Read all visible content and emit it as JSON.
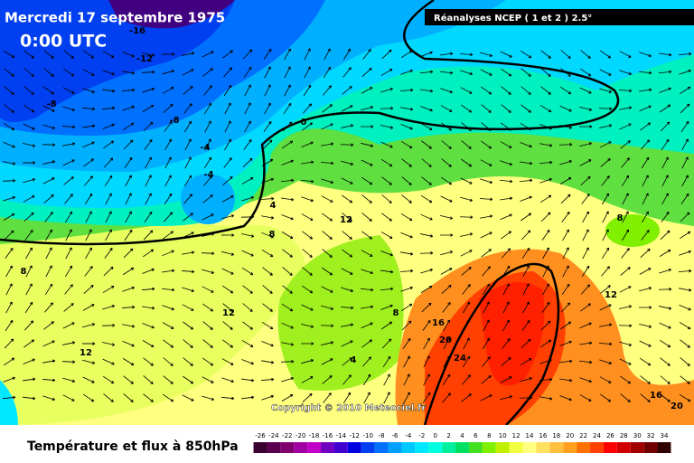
{
  "header": {
    "date": "Mercredi 17 septembre 1975",
    "time": "0:00 UTC",
    "source": "Réanalyses NCEP ( 1 et 2 ) 2.5°"
  },
  "copyright": "Copyright © 2010 Meteociel.fr",
  "footer_title": "Température et flux à 850hPa",
  "contour_labels": [
    "-16",
    "-12",
    "-8",
    "-8",
    "-4",
    "-4",
    "0",
    "4",
    "8",
    "12",
    "8",
    "12",
    "8",
    "12",
    "12",
    "4",
    "16",
    "20",
    "24",
    "16",
    "20",
    "8"
  ],
  "legend": {
    "ticks": [
      -26,
      -24,
      -22,
      -20,
      -18,
      -16,
      -14,
      -12,
      -10,
      -8,
      -6,
      -4,
      -2,
      0,
      2,
      4,
      6,
      8,
      10,
      12,
      14,
      16,
      18,
      20,
      22,
      24,
      26,
      28,
      30,
      32,
      34
    ],
    "colors": [
      "#3a0030",
      "#5a0050",
      "#800070",
      "#a000a0",
      "#c000c8",
      "#7000c0",
      "#4000d0",
      "#0000e0",
      "#0040f0",
      "#0070ff",
      "#00a0ff",
      "#00c8ff",
      "#00e8ff",
      "#00ffe0",
      "#00f0a0",
      "#00e060",
      "#40e020",
      "#80f000",
      "#c0f000",
      "#f0ff40",
      "#ffff80",
      "#ffe060",
      "#ffc040",
      "#ffa020",
      "#ff7000",
      "#ff4000",
      "#ff0000",
      "#d00000",
      "#a00000",
      "#700000",
      "#300000"
    ]
  }
}
